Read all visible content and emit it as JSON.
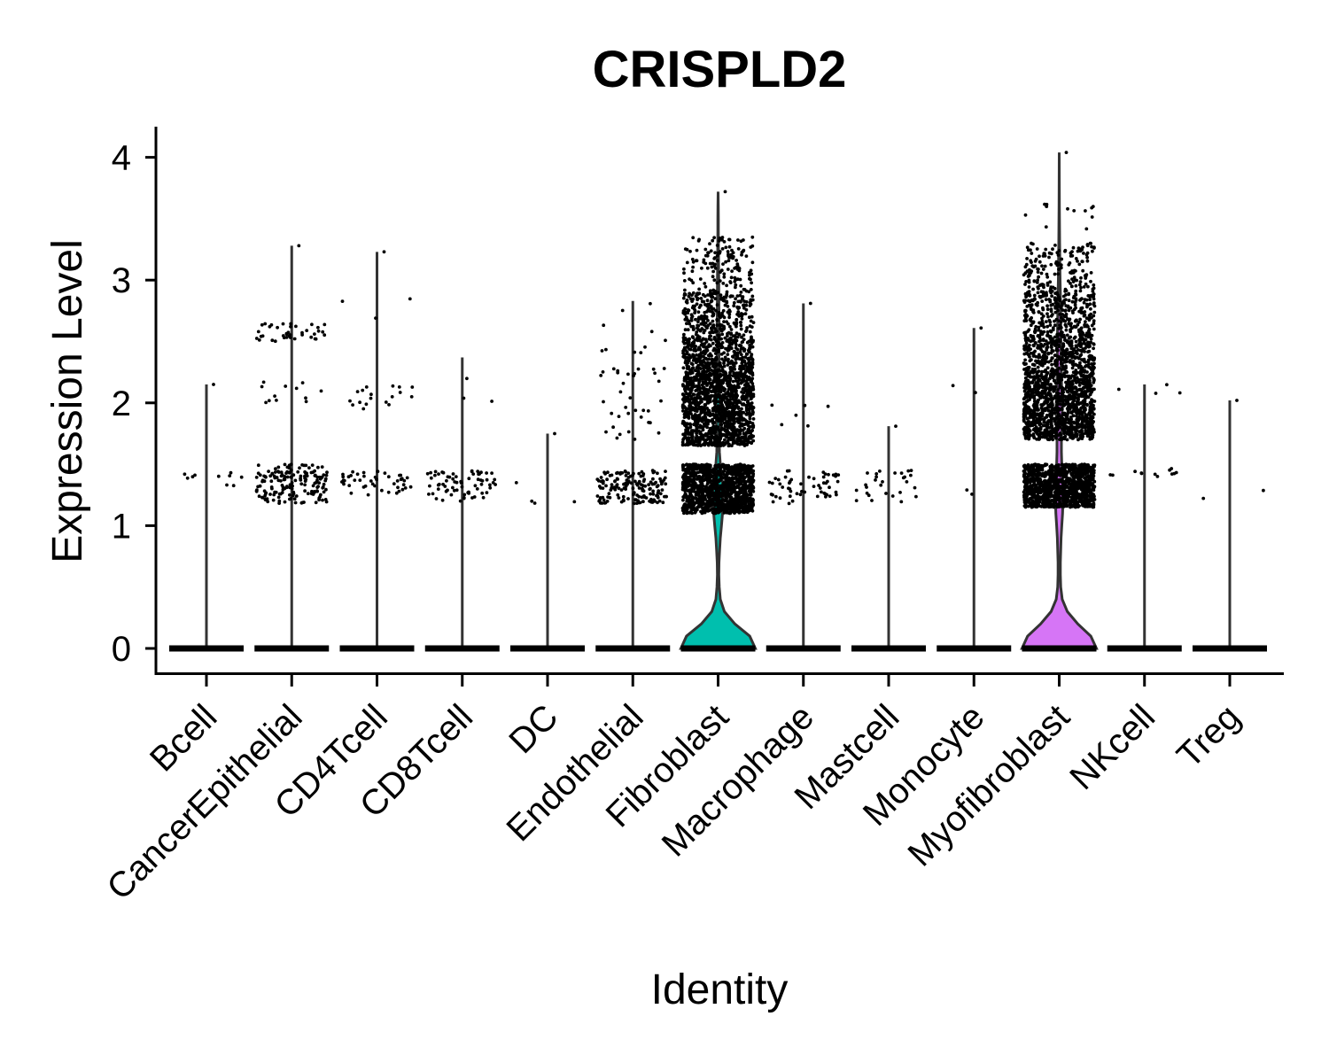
{
  "chart_data": {
    "type": "violin",
    "title": "CRISPLD2",
    "xlabel": "Identity",
    "ylabel": "Expression Level",
    "ylim": [
      -0.2,
      4.25
    ],
    "yticks": [
      0,
      1,
      2,
      3,
      4
    ],
    "grid": false,
    "legend": "none",
    "categories": [
      "Bcell",
      "CancerEpithelial",
      "CD4Tcell",
      "CD8Tcell",
      "DC",
      "Endothelial",
      "Fibroblast",
      "Macrophage",
      "Mastcell",
      "Monocyte",
      "Myofibroblast",
      "NKcell",
      "Treg"
    ],
    "max_values": [
      2.15,
      3.28,
      3.23,
      2.37,
      1.75,
      2.83,
      3.72,
      2.81,
      1.81,
      2.61,
      4.04,
      2.15,
      2.02
    ],
    "colors": {
      "Fibroblast": "#00bfae",
      "Myofibroblast": "#d675f6"
    },
    "point_bands": {
      "Bcell": [
        [
          1.3,
          1.45,
          10
        ],
        [
          2.15,
          2.15,
          1
        ]
      ],
      "CancerEpithelial": [
        [
          1.18,
          1.5,
          170
        ],
        [
          2.0,
          2.2,
          12
        ],
        [
          2.5,
          2.65,
          40
        ],
        [
          3.28,
          3.28,
          1
        ]
      ],
      "CD4Tcell": [
        [
          1.25,
          1.45,
          45
        ],
        [
          1.95,
          2.15,
          18
        ],
        [
          2.55,
          2.85,
          3
        ],
        [
          3.23,
          3.23,
          1
        ]
      ],
      "CD8Tcell": [
        [
          1.2,
          1.45,
          70
        ],
        [
          2.0,
          2.37,
          3
        ]
      ],
      "DC": [
        [
          1.18,
          1.43,
          4
        ],
        [
          1.75,
          1.75,
          1
        ]
      ],
      "Endothelial": [
        [
          1.18,
          1.45,
          160
        ],
        [
          1.65,
          2.3,
          35
        ],
        [
          2.4,
          2.83,
          10
        ]
      ],
      "Fibroblast": [
        [
          1.1,
          1.5,
          1200
        ],
        [
          1.65,
          1.95,
          600
        ],
        [
          1.95,
          2.25,
          600
        ],
        [
          2.25,
          2.55,
          400
        ],
        [
          2.55,
          2.9,
          280
        ],
        [
          2.9,
          3.35,
          140
        ],
        [
          3.72,
          3.72,
          1
        ]
      ],
      "Macrophage": [
        [
          1.18,
          1.45,
          55
        ],
        [
          1.75,
          2.0,
          6
        ],
        [
          2.81,
          2.81,
          1
        ]
      ],
      "Mastcell": [
        [
          1.18,
          1.45,
          28
        ],
        [
          1.81,
          1.81,
          1
        ]
      ],
      "Monocyte": [
        [
          1.17,
          1.45,
          2
        ],
        [
          2.08,
          2.15,
          2
        ],
        [
          2.61,
          2.61,
          1
        ]
      ],
      "Myofibroblast": [
        [
          1.15,
          1.5,
          1100
        ],
        [
          1.7,
          1.95,
          550
        ],
        [
          1.95,
          2.25,
          550
        ],
        [
          2.25,
          2.55,
          400
        ],
        [
          2.55,
          2.9,
          300
        ],
        [
          2.9,
          3.3,
          170
        ],
        [
          3.4,
          3.62,
          12
        ],
        [
          4.04,
          4.04,
          1
        ]
      ],
      "NKcell": [
        [
          1.4,
          1.47,
          12
        ],
        [
          2.05,
          2.15,
          4
        ]
      ],
      "Treg": [
        [
          1.22,
          1.3,
          2
        ],
        [
          2.02,
          2.02,
          1
        ]
      ]
    },
    "violins": {
      "Fibroblast": {
        "y": [
          0.0,
          0.1,
          0.2,
          0.3,
          0.4,
          0.5,
          0.6,
          0.7,
          0.8,
          0.9,
          1.0,
          1.1,
          1.2,
          1.3,
          1.4,
          1.5,
          1.6,
          1.7,
          1.8,
          1.9,
          2.0,
          2.1,
          2.2,
          2.3,
          2.4,
          2.5,
          2.6,
          2.7,
          2.8,
          2.9,
          3.0,
          3.1,
          3.2,
          3.3,
          3.4,
          3.5,
          3.6,
          3.72
        ],
        "w": [
          1.0,
          0.85,
          0.45,
          0.17,
          0.06,
          0.03,
          0.02,
          0.025,
          0.04,
          0.06,
          0.09,
          0.12,
          0.14,
          0.14,
          0.1,
          0.06,
          0.035,
          0.03,
          0.04,
          0.05,
          0.05,
          0.04,
          0.03,
          0.025,
          0.025,
          0.03,
          0.03,
          0.025,
          0.022,
          0.02,
          0.018,
          0.015,
          0.012,
          0.01,
          0.008,
          0.006,
          0.004,
          0.0
        ]
      },
      "Myofibroblast": {
        "y": [
          0.0,
          0.1,
          0.2,
          0.3,
          0.4,
          0.5,
          0.6,
          0.7,
          0.8,
          0.9,
          1.0,
          1.1,
          1.2,
          1.3,
          1.4,
          1.5,
          1.6,
          1.7,
          1.8,
          1.9,
          2.0,
          2.1,
          2.2,
          2.3,
          2.4,
          2.5,
          2.6,
          2.7,
          2.8,
          2.9,
          3.0,
          3.1,
          3.2,
          3.3,
          3.4,
          3.5,
          3.6,
          3.8,
          4.04
        ],
        "w": [
          1.0,
          0.85,
          0.5,
          0.22,
          0.08,
          0.04,
          0.03,
          0.03,
          0.04,
          0.05,
          0.07,
          0.09,
          0.1,
          0.1,
          0.09,
          0.07,
          0.06,
          0.06,
          0.07,
          0.08,
          0.08,
          0.07,
          0.06,
          0.05,
          0.05,
          0.05,
          0.045,
          0.04,
          0.035,
          0.03,
          0.025,
          0.02,
          0.016,
          0.012,
          0.009,
          0.006,
          0.004,
          0.002,
          0.0
        ]
      }
    }
  }
}
